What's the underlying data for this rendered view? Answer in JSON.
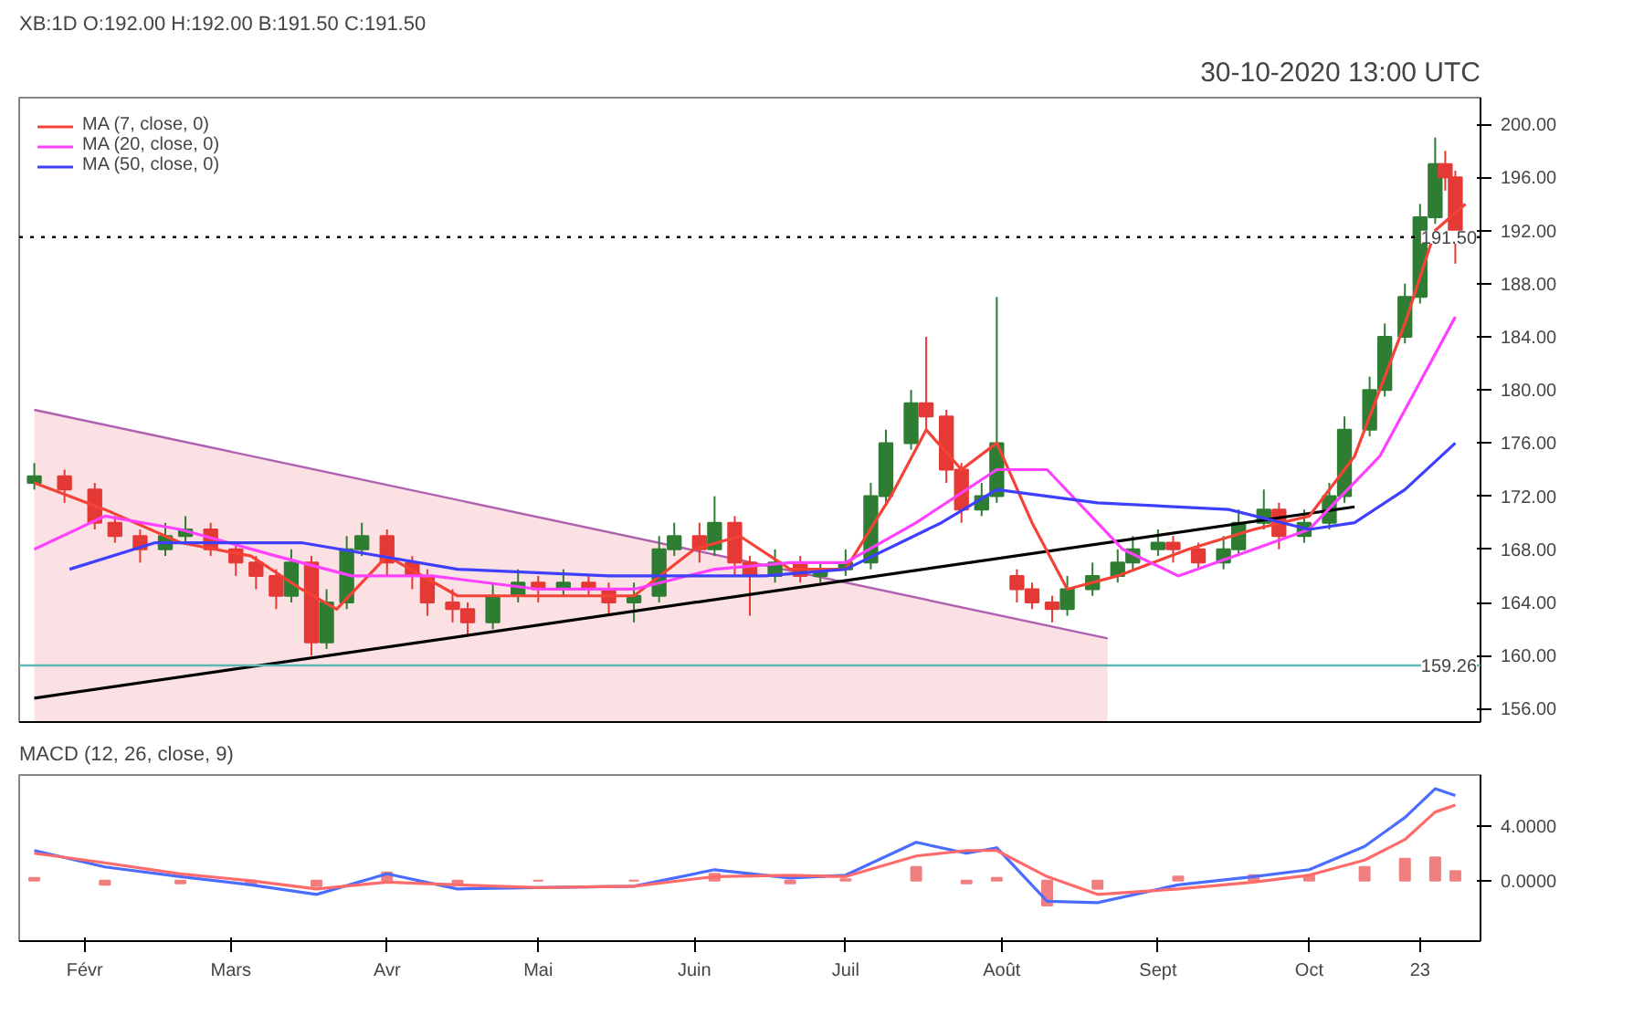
{
  "chart_data": [
    {
      "type": "candlestick",
      "title": "XB:1D O:192.00 H:192.00 B:191.50 C:191.50",
      "subtitle": "30-10-2020 13:00 UTC",
      "x": [
        "2020-01-22",
        "2020-01-28",
        "2020-02-03",
        "2020-02-07",
        "2020-02-12",
        "2020-02-17",
        "2020-02-21",
        "2020-02-26",
        "2020-03-02",
        "2020-03-06",
        "2020-03-10",
        "2020-03-13",
        "2020-03-17",
        "2020-03-20",
        "2020-03-24",
        "2020-03-27",
        "2020-04-01",
        "2020-04-06",
        "2020-04-09",
        "2020-04-14",
        "2020-04-17",
        "2020-04-22",
        "2020-04-27",
        "2020-05-01",
        "2020-05-06",
        "2020-05-11",
        "2020-05-15",
        "2020-05-20",
        "2020-05-25",
        "2020-05-28",
        "2020-06-02",
        "2020-06-05",
        "2020-06-09",
        "2020-06-12",
        "2020-06-17",
        "2020-06-22",
        "2020-06-26",
        "2020-07-01",
        "2020-07-06",
        "2020-07-09",
        "2020-07-14",
        "2020-07-17",
        "2020-07-21",
        "2020-07-24",
        "2020-07-28",
        "2020-07-31",
        "2020-08-04",
        "2020-08-07",
        "2020-08-11",
        "2020-08-14",
        "2020-08-19",
        "2020-08-24",
        "2020-08-27",
        "2020-09-01",
        "2020-09-04",
        "2020-09-09",
        "2020-09-14",
        "2020-09-17",
        "2020-09-22",
        "2020-09-25",
        "2020-09-30",
        "2020-10-05",
        "2020-10-08",
        "2020-10-13",
        "2020-10-16",
        "2020-10-20",
        "2020-10-23",
        "2020-10-26",
        "2020-10-28",
        "2020-10-30"
      ],
      "ohlc": [
        [
          173,
          174.5,
          172.5,
          173.5
        ],
        [
          173.5,
          174,
          171.5,
          172.5
        ],
        [
          172.5,
          173,
          169.5,
          170
        ],
        [
          170,
          170.5,
          168.5,
          169
        ],
        [
          169,
          169.5,
          167,
          168
        ],
        [
          168,
          170,
          167.5,
          169
        ],
        [
          169,
          170.5,
          168.5,
          169.5
        ],
        [
          169.5,
          170,
          167.5,
          168
        ],
        [
          168,
          168.5,
          166,
          167
        ],
        [
          167,
          167.5,
          165,
          166
        ],
        [
          166,
          166.5,
          163.5,
          164.5
        ],
        [
          164.5,
          168,
          164,
          167
        ],
        [
          167,
          167.5,
          160,
          161
        ],
        [
          161,
          165,
          160.5,
          164
        ],
        [
          164,
          169,
          163.5,
          168
        ],
        [
          168,
          170,
          167.5,
          169
        ],
        [
          169,
          169.5,
          166,
          167
        ],
        [
          167,
          167.5,
          165,
          166
        ],
        [
          166,
          166.5,
          163,
          164
        ],
        [
          164,
          165,
          162.5,
          163.5
        ],
        [
          163.5,
          164,
          161.5,
          162.5
        ],
        [
          162.5,
          165.5,
          162,
          164.5
        ],
        [
          164.5,
          166.5,
          164,
          165.5
        ],
        [
          165.5,
          166,
          164,
          165
        ],
        [
          165,
          166.5,
          164.5,
          165.5
        ],
        [
          165.5,
          166,
          164.5,
          165
        ],
        [
          165,
          165.5,
          163,
          164
        ],
        [
          164,
          165.5,
          162.5,
          164.5
        ],
        [
          164.5,
          169,
          164,
          168
        ],
        [
          168,
          170,
          167.5,
          169
        ],
        [
          169,
          170,
          167,
          168
        ],
        [
          168,
          172,
          167.5,
          170
        ],
        [
          170,
          170.5,
          166,
          167
        ],
        [
          167,
          167.5,
          163,
          166
        ],
        [
          166,
          168,
          165.5,
          167
        ],
        [
          167,
          167.5,
          165.5,
          166
        ],
        [
          166,
          167,
          165.5,
          166.5
        ],
        [
          166.5,
          168,
          166,
          167
        ],
        [
          167,
          173,
          166.5,
          172
        ],
        [
          172,
          177,
          171.5,
          176
        ],
        [
          176,
          180,
          175.5,
          179
        ],
        [
          179,
          184,
          177,
          178
        ],
        [
          178,
          178.5,
          173,
          174
        ],
        [
          174,
          174.5,
          170,
          171
        ],
        [
          171,
          173,
          170.5,
          172
        ],
        [
          172,
          187,
          171.5,
          176
        ],
        [
          166,
          166.5,
          164,
          165
        ],
        [
          165,
          165.5,
          163.5,
          164
        ],
        [
          164,
          164.5,
          162.5,
          163.5
        ],
        [
          163.5,
          166,
          163,
          165
        ],
        [
          165,
          167,
          164.5,
          166
        ],
        [
          166,
          168,
          165.5,
          167
        ],
        [
          167,
          169,
          166.5,
          168
        ],
        [
          168,
          169.5,
          167.5,
          168.5
        ],
        [
          168.5,
          169,
          167,
          168
        ],
        [
          168,
          168.5,
          166.5,
          167
        ],
        [
          167,
          169,
          166.5,
          168
        ],
        [
          168,
          171,
          167.5,
          170
        ],
        [
          170,
          172.5,
          169.5,
          171
        ],
        [
          171,
          171.5,
          168,
          169
        ],
        [
          169,
          171,
          168.5,
          170
        ],
        [
          170,
          173,
          169.5,
          172
        ],
        [
          172,
          178,
          171.5,
          177
        ],
        [
          177,
          181,
          176.5,
          180
        ],
        [
          180,
          185,
          179.5,
          184
        ],
        [
          184,
          188,
          183.5,
          187
        ],
        [
          187,
          194,
          186.5,
          193
        ],
        [
          193,
          199,
          192.5,
          197
        ],
        [
          197,
          198,
          195,
          196
        ],
        [
          196,
          196.5,
          189.5,
          191.5
        ]
      ],
      "colors": [
        "#2e7d32",
        "#e53935",
        "#e53935",
        "#e53935",
        "#e53935",
        "#2e7d32",
        "#2e7d32",
        "#e53935",
        "#e53935",
        "#e53935",
        "#e53935",
        "#2e7d32",
        "#e53935",
        "#2e7d32",
        "#2e7d32",
        "#2e7d32",
        "#e53935",
        "#e53935",
        "#e53935",
        "#e53935",
        "#e53935",
        "#2e7d32",
        "#2e7d32",
        "#e53935",
        "#2e7d32",
        "#e53935",
        "#e53935",
        "#2e7d32",
        "#2e7d32",
        "#2e7d32",
        "#e53935",
        "#2e7d32",
        "#e53935",
        "#e53935",
        "#2e7d32",
        "#e53935",
        "#2e7d32",
        "#2e7d32",
        "#2e7d32",
        "#2e7d32",
        "#2e7d32",
        "#e53935",
        "#e53935",
        "#e53935",
        "#2e7d32",
        "#2e7d32",
        "#e53935",
        "#e53935",
        "#e53935",
        "#2e7d32",
        "#2e7d32",
        "#2e7d32",
        "#2e7d32",
        "#2e7d32",
        "#e53935",
        "#e53935",
        "#2e7d32",
        "#2e7d32",
        "#2e7d32",
        "#e53935",
        "#2e7d32",
        "#2e7d32",
        "#2e7d32",
        "#2e7d32",
        "#2e7d32",
        "#2e7d32",
        "#2e7d32",
        "#2e7d32",
        "#e53935",
        "#e53935"
      ],
      "series": [
        {
          "type": "area",
          "color": "#b060b0",
          "x": [
            "2020-01-22",
            "2020-08-22"
          ],
          "values": [
            178.5,
            161.3
          ]
        },
        {
          "type": "line",
          "color": "#000000",
          "x": [
            "2020-01-22",
            "2020-10-10"
          ],
          "values": [
            156.8,
            171.2
          ]
        },
        {
          "type": "line",
          "name": "MA (7, close, 0)",
          "color": "#f44336",
          "x": [
            "2020-01-22",
            "2020-02-05",
            "2020-02-20",
            "2020-03-05",
            "2020-03-15",
            "2020-03-22",
            "2020-04-01",
            "2020-04-15",
            "2020-05-01",
            "2020-05-20",
            "2020-06-01",
            "2020-06-10",
            "2020-06-20",
            "2020-07-01",
            "2020-07-10",
            "2020-07-17",
            "2020-07-24",
            "2020-07-31",
            "2020-08-07",
            "2020-08-14",
            "2020-08-24",
            "2020-09-07",
            "2020-09-20",
            "2020-10-01",
            "2020-10-10",
            "2020-10-20",
            "2020-10-26",
            "2020-11-01"
          ],
          "values": [
            173,
            171,
            168.5,
            167.5,
            165,
            163.5,
            167.5,
            164.5,
            164.5,
            164.5,
            168,
            169,
            166.5,
            166.5,
            172,
            177,
            174,
            176,
            170,
            165,
            166,
            168,
            169.5,
            170.5,
            175,
            185,
            192,
            194
          ]
        },
        {
          "type": "line",
          "name": "MA (20, close, 0)",
          "color": "#ff40ff",
          "x": [
            "2020-01-22",
            "2020-02-05",
            "2020-02-20",
            "2020-03-10",
            "2020-03-25",
            "2020-04-10",
            "2020-05-01",
            "2020-05-20",
            "2020-06-05",
            "2020-06-20",
            "2020-07-01",
            "2020-07-15",
            "2020-07-31",
            "2020-08-10",
            "2020-08-25",
            "2020-09-05",
            "2020-09-20",
            "2020-10-01",
            "2020-10-15",
            "2020-10-30"
          ],
          "values": [
            168,
            170.5,
            169.5,
            167.5,
            166,
            166,
            165,
            165,
            166.5,
            167,
            167,
            170,
            174,
            174,
            168,
            166,
            168,
            169.5,
            175,
            185.5
          ]
        },
        {
          "type": "line",
          "name": "MA (50, close, 0)",
          "color": "#3f3fff",
          "x": [
            "2020-01-29",
            "2020-02-15",
            "2020-03-15",
            "2020-04-15",
            "2020-05-15",
            "2020-06-15",
            "2020-07-01",
            "2020-07-20",
            "2020-07-31",
            "2020-08-20",
            "2020-09-15",
            "2020-10-01",
            "2020-10-10",
            "2020-10-20",
            "2020-10-30"
          ],
          "values": [
            166.5,
            168.5,
            168.5,
            166.5,
            166,
            166,
            166.5,
            170,
            172.5,
            171.5,
            171,
            169.5,
            170,
            172.5,
            176
          ]
        }
      ],
      "ref_lines": [
        {
          "axis": "y",
          "value": 191.5,
          "label": "191.50",
          "color": "#000000",
          "line_style": "dotted"
        },
        {
          "axis": "y",
          "value": 159.26,
          "label": "159.26",
          "color": "#5fb8b8",
          "line_style": "solid"
        }
      ],
      "xlim": [
        "2020-01-19",
        "2020-11-04"
      ],
      "ylim": [
        155,
        202
      ],
      "yticks": [
        {
          "value": 156,
          "label": "156.00"
        },
        {
          "value": 160,
          "label": "160.00"
        },
        {
          "value": 164,
          "label": "164.00"
        },
        {
          "value": 168,
          "label": "168.00"
        },
        {
          "value": 172,
          "label": "172.00"
        },
        {
          "value": 176,
          "label": "176.00"
        },
        {
          "value": 180,
          "label": "180.00"
        },
        {
          "value": 184,
          "label": "184.00"
        },
        {
          "value": 188,
          "label": "188.00"
        },
        {
          "value": 192,
          "label": "192.00"
        },
        {
          "value": 196,
          "label": "196.00"
        },
        {
          "value": 200,
          "label": "200.00"
        }
      ],
      "tick_labels": "y",
      "legend": "top left"
    },
    {
      "type": "line",
      "title": "MACD (12, 26, close, 9)",
      "x": [
        "2020-01-22",
        "2020-02-05",
        "2020-02-20",
        "2020-03-05",
        "2020-03-18",
        "2020-04-01",
        "2020-04-15",
        "2020-05-01",
        "2020-05-20",
        "2020-06-05",
        "2020-06-20",
        "2020-07-01",
        "2020-07-15",
        "2020-07-25",
        "2020-07-31",
        "2020-08-10",
        "2020-08-20",
        "2020-09-05",
        "2020-09-20",
        "2020-10-01",
        "2020-10-12",
        "2020-10-20",
        "2020-10-26",
        "2020-10-30"
      ],
      "series": [
        {
          "type": "bar",
          "color": "#f08080",
          "values": [
            0.2,
            -0.3,
            -0.2,
            -0.3,
            -0.4,
            0.6,
            -0.3,
            0,
            0,
            0.5,
            -0.2,
            0.1,
            1,
            -0.2,
            0.2,
            -1.8,
            -0.6,
            0.3,
            0.4,
            0.4,
            1,
            1.6,
            1.7,
            0.7
          ]
        },
        {
          "color": "#4a6cff",
          "values": [
            2.2,
            1,
            0.3,
            -0.3,
            -1,
            0.5,
            -0.6,
            -0.5,
            -0.4,
            0.8,
            0.2,
            0.4,
            2.8,
            2,
            2.4,
            -1.5,
            -1.6,
            -0.3,
            0.3,
            0.8,
            2.5,
            4.6,
            6.7,
            6.2
          ]
        },
        {
          "color": "#ff6a6a",
          "values": [
            2,
            1.3,
            0.5,
            0,
            -0.6,
            -0.1,
            -0.3,
            -0.5,
            -0.4,
            0.3,
            0.4,
            0.3,
            1.8,
            2.2,
            2.2,
            0.3,
            -1,
            -0.6,
            -0.1,
            0.4,
            1.5,
            3,
            5,
            5.5
          ]
        }
      ],
      "xlim": [
        "2020-01-19",
        "2020-11-04"
      ],
      "ylim": [
        -4.4,
        7.7
      ],
      "xticks": [
        {
          "value": "2020-02-01",
          "label": "Févr"
        },
        {
          "value": "2020-03-01",
          "label": "Mars"
        },
        {
          "value": "2020-04-01",
          "label": "Avr"
        },
        {
          "value": "2020-05-01",
          "label": "Mai"
        },
        {
          "value": "2020-06-01",
          "label": "Juin"
        },
        {
          "value": "2020-07-01",
          "label": "Juil"
        },
        {
          "value": "2020-08-01",
          "label": "Août"
        },
        {
          "value": "2020-09-01",
          "label": "Sept"
        },
        {
          "value": "2020-10-01",
          "label": "Oct"
        },
        {
          "value": "2020-10-23",
          "label": "23"
        }
      ],
      "yticks": [
        {
          "value": 0,
          "label": "0.0000"
        },
        {
          "value": 4,
          "label": "4.0000"
        }
      ]
    }
  ]
}
